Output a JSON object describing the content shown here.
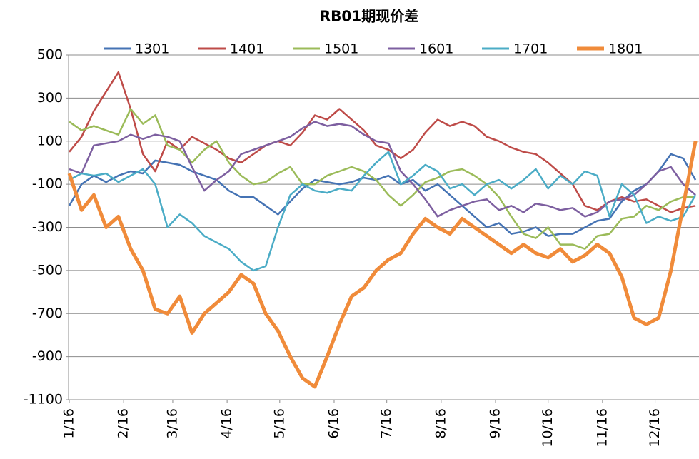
{
  "chart_data": {
    "type": "line",
    "title": "RB01期现价差",
    "x": [
      0,
      7,
      14,
      21,
      28,
      35,
      42,
      49,
      56,
      63,
      70,
      77,
      84,
      91,
      98,
      105,
      112,
      119,
      126,
      133,
      140,
      147,
      154,
      161,
      168,
      175,
      182,
      189,
      196,
      203,
      210,
      217,
      224,
      231,
      238,
      245,
      252,
      259,
      266,
      273,
      280,
      287,
      294,
      301,
      308,
      315,
      322,
      329,
      336,
      343,
      350,
      357
    ],
    "xlim": [
      0,
      359
    ],
    "xticks": [
      {
        "value": 0,
        "label": "1/16"
      },
      {
        "value": 31,
        "label": "2/16"
      },
      {
        "value": 59,
        "label": "3/16"
      },
      {
        "value": 90,
        "label": "4/16"
      },
      {
        "value": 120,
        "label": "5/16"
      },
      {
        "value": 151,
        "label": "6/16"
      },
      {
        "value": 181,
        "label": "7/16"
      },
      {
        "value": 212,
        "label": "8/16"
      },
      {
        "value": 243,
        "label": "9/16"
      },
      {
        "value": 273,
        "label": "10/16"
      },
      {
        "value": 304,
        "label": "11/16"
      },
      {
        "value": 334,
        "label": "12/16"
      }
    ],
    "ylim": [
      -1100,
      500
    ],
    "yticks": [
      500,
      300,
      100,
      -100,
      -300,
      -500,
      -700,
      -900,
      -1100
    ],
    "grid": true,
    "series": [
      {
        "name": "1301",
        "color": "#4573b4",
        "values": [
          -200,
          -100,
          -60,
          -90,
          -60,
          -40,
          -50,
          10,
          0,
          -10,
          -40,
          -60,
          -80,
          -130,
          -160,
          -160,
          -200,
          -240,
          -180,
          -120,
          -80,
          -90,
          -100,
          -90,
          -70,
          -80,
          -60,
          -100,
          -80,
          -130,
          -100,
          -150,
          -200,
          -250,
          -300,
          -280,
          -330,
          -320,
          -300,
          -340,
          -330,
          -330,
          -300,
          -270,
          -260,
          -180,
          -130,
          -100,
          -40,
          40,
          20,
          -80
        ]
      },
      {
        "name": "1401",
        "color": "#be4b48",
        "values": [
          50,
          120,
          240,
          330,
          420,
          250,
          40,
          -40,
          100,
          60,
          120,
          90,
          60,
          20,
          0,
          40,
          80,
          100,
          80,
          140,
          220,
          200,
          250,
          200,
          150,
          80,
          60,
          20,
          60,
          140,
          200,
          170,
          190,
          170,
          120,
          100,
          70,
          50,
          40,
          0,
          -50,
          -100,
          -200,
          -220,
          -180,
          -160,
          -180,
          -170,
          -200,
          -230,
          -210,
          -200
        ]
      },
      {
        "name": "1501",
        "color": "#9bbb59",
        "values": [
          190,
          150,
          170,
          150,
          130,
          250,
          180,
          220,
          80,
          60,
          0,
          60,
          100,
          0,
          -60,
          -100,
          -90,
          -50,
          -20,
          -100,
          -100,
          -60,
          -40,
          -20,
          -40,
          -80,
          -150,
          -200,
          -150,
          -90,
          -70,
          -40,
          -30,
          -60,
          -100,
          -160,
          -250,
          -330,
          -350,
          -300,
          -380,
          -380,
          -400,
          -340,
          -330,
          -260,
          -250,
          -200,
          -220,
          -180,
          -160,
          -160
        ]
      },
      {
        "name": "1601",
        "color": "#7d5fa0",
        "values": [
          -30,
          -50,
          80,
          90,
          100,
          130,
          110,
          130,
          120,
          100,
          -20,
          -130,
          -80,
          -40,
          40,
          60,
          80,
          100,
          120,
          160,
          190,
          170,
          180,
          170,
          130,
          100,
          90,
          -40,
          -100,
          -170,
          -250,
          -220,
          -200,
          -180,
          -170,
          -220,
          -200,
          -230,
          -190,
          -200,
          -220,
          -210,
          -250,
          -230,
          -180,
          -170,
          -150,
          -100,
          -40,
          -20,
          -100,
          -150
        ]
      },
      {
        "name": "1701",
        "color": "#4bacc6",
        "values": [
          -80,
          -50,
          -60,
          -50,
          -90,
          -60,
          -30,
          -100,
          -300,
          -240,
          -280,
          -340,
          -370,
          -400,
          -460,
          -500,
          -480,
          -300,
          -150,
          -100,
          -130,
          -140,
          -120,
          -130,
          -60,
          0,
          50,
          -100,
          -60,
          -10,
          -40,
          -120,
          -100,
          -150,
          -100,
          -80,
          -120,
          -80,
          -30,
          -120,
          -60,
          -100,
          -40,
          -60,
          -250,
          -100,
          -150,
          -280,
          -250,
          -270,
          -250,
          -150
        ]
      },
      {
        "name": "1801",
        "color": "#f08b3a",
        "width": 5,
        "values": [
          -50,
          -220,
          -150,
          -300,
          -250,
          -400,
          -500,
          -680,
          -700,
          -620,
          -790,
          -700,
          -650,
          -600,
          -520,
          -560,
          -700,
          -780,
          -900,
          -1000,
          -1040,
          -900,
          -750,
          -620,
          -580,
          -500,
          -450,
          -420,
          -330,
          -260,
          -300,
          -330,
          -260,
          -300,
          -340,
          -380,
          -420,
          -380,
          -420,
          -440,
          -400,
          -460,
          -430,
          -380,
          -420,
          -530,
          -720,
          -750,
          -720,
          -500,
          -200,
          100
        ]
      }
    ]
  }
}
